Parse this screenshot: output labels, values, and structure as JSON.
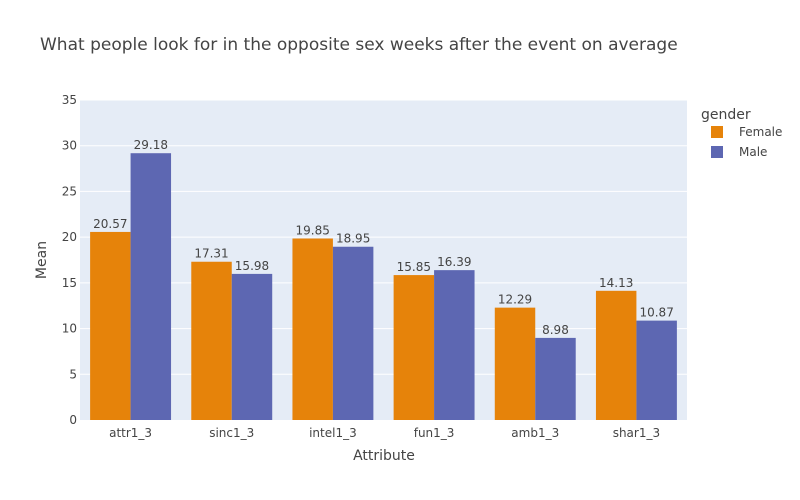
{
  "chart_data": {
    "type": "bar",
    "title": "What people look for in the opposite sex weeks after the event on average",
    "xlabel": "Attribute",
    "ylabel": "Mean",
    "categories": [
      "attr1_3",
      "sinc1_3",
      "intel1_3",
      "fun1_3",
      "amb1_3",
      "shar1_3"
    ],
    "series": [
      {
        "name": "Female",
        "color": "#E6830A",
        "values": [
          20.57,
          17.31,
          19.85,
          15.85,
          12.29,
          14.13
        ]
      },
      {
        "name": "Male",
        "color": "#5D67B2",
        "values": [
          29.18,
          15.98,
          18.95,
          16.39,
          8.98,
          10.87
        ]
      }
    ],
    "ylim": [
      0,
      35
    ],
    "yticks": [
      0,
      5,
      10,
      15,
      20,
      25,
      30,
      35
    ],
    "grid": true,
    "barmode": "group",
    "legend_title": "gender",
    "legend_position": "top-right",
    "plot_bgcolor": "#E5ECF6"
  }
}
